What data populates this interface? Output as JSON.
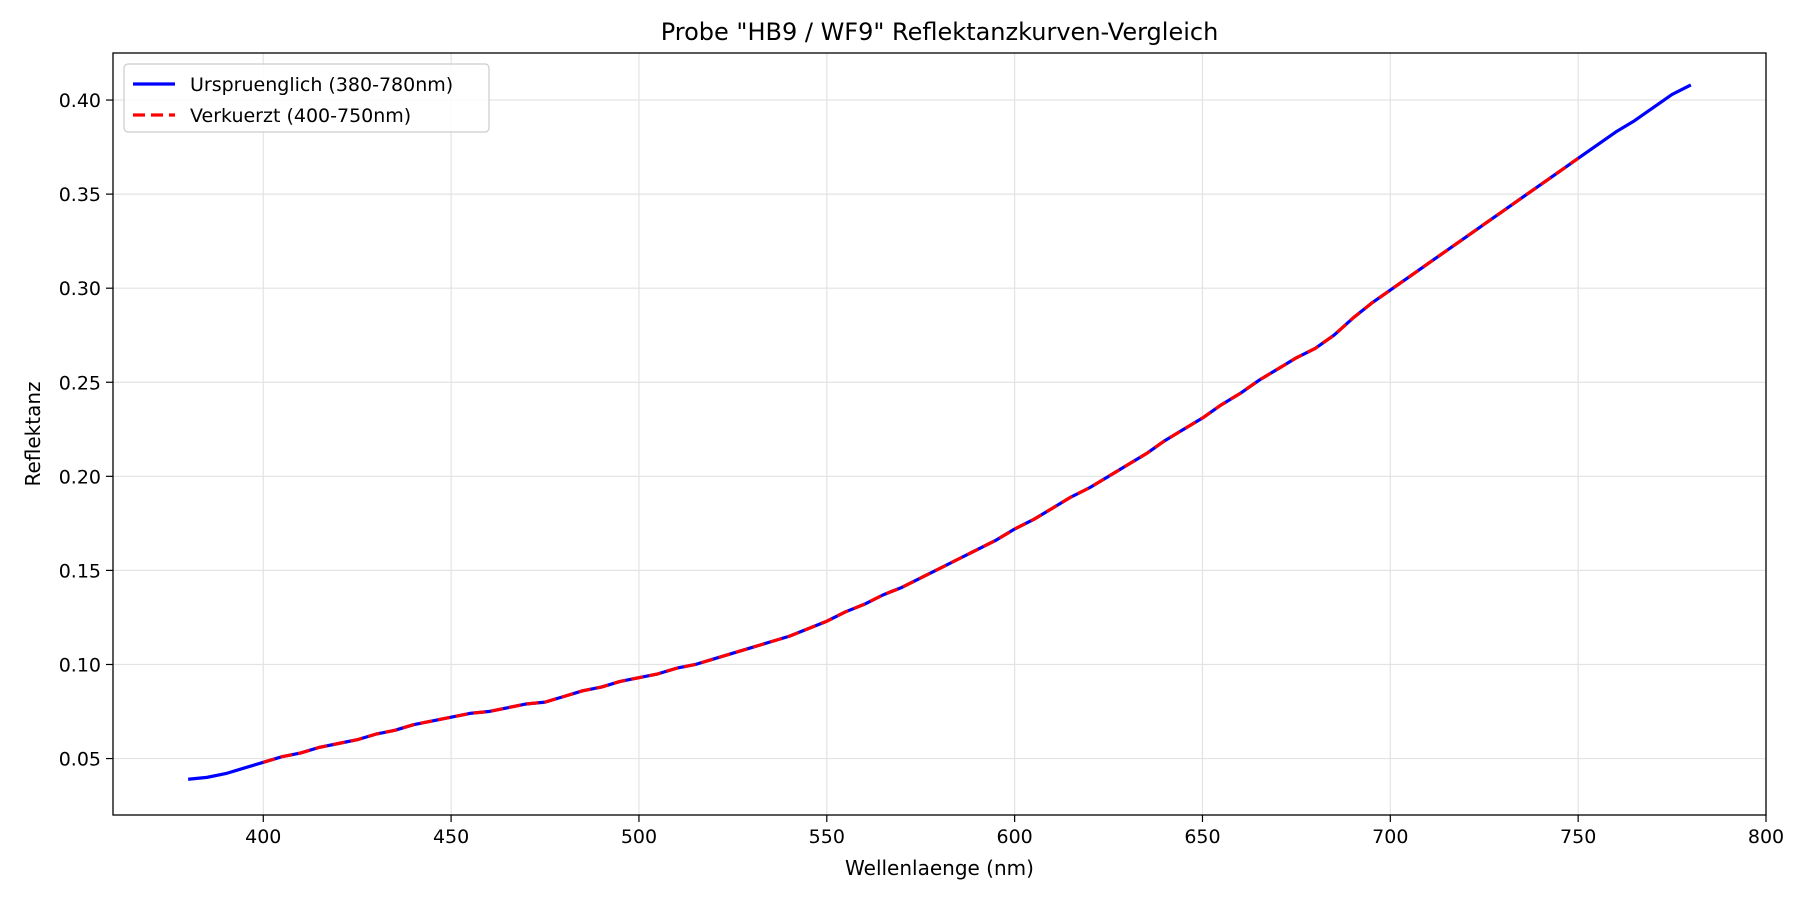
{
  "chart_data": {
    "type": "line",
    "title": "Probe \"HB9 / WF9\" Reflektanzkurven-Vergleich",
    "xlabel": "Wellenlaenge (nm)",
    "ylabel": "Reflektanz",
    "xlim": [
      360,
      800
    ],
    "ylim": [
      0.02,
      0.425
    ],
    "xticks": [
      400,
      450,
      500,
      550,
      600,
      650,
      700,
      750,
      800
    ],
    "yticks": [
      0.05,
      0.1,
      0.15,
      0.2,
      0.25,
      0.3,
      0.35,
      0.4
    ],
    "xtick_labels": [
      "400",
      "450",
      "500",
      "550",
      "600",
      "650",
      "700",
      "750",
      "800"
    ],
    "ytick_labels": [
      "0.05",
      "0.10",
      "0.15",
      "0.20",
      "0.25",
      "0.30",
      "0.35",
      "0.40"
    ],
    "grid": true,
    "legend_position": "top-left",
    "series": [
      {
        "name": "Urspruenglich (380-780nm)",
        "color": "#0000ff",
        "style": "solid",
        "x": [
          380,
          385,
          390,
          395,
          400,
          405,
          410,
          415,
          420,
          425,
          430,
          435,
          440,
          445,
          450,
          455,
          460,
          465,
          470,
          475,
          480,
          485,
          490,
          495,
          500,
          505,
          510,
          515,
          520,
          525,
          530,
          535,
          540,
          545,
          550,
          555,
          560,
          565,
          570,
          575,
          580,
          585,
          590,
          595,
          600,
          605,
          610,
          615,
          620,
          625,
          630,
          635,
          640,
          645,
          650,
          655,
          660,
          665,
          670,
          675,
          680,
          685,
          690,
          695,
          700,
          705,
          710,
          715,
          720,
          725,
          730,
          735,
          740,
          745,
          750,
          755,
          760,
          765,
          770,
          775,
          780
        ],
        "y": [
          0.039,
          0.04,
          0.042,
          0.045,
          0.048,
          0.051,
          0.053,
          0.056,
          0.058,
          0.06,
          0.063,
          0.065,
          0.068,
          0.07,
          0.072,
          0.074,
          0.075,
          0.077,
          0.079,
          0.08,
          0.083,
          0.086,
          0.088,
          0.091,
          0.093,
          0.095,
          0.098,
          0.1,
          0.103,
          0.106,
          0.109,
          0.112,
          0.115,
          0.119,
          0.123,
          0.128,
          0.132,
          0.137,
          0.141,
          0.146,
          0.151,
          0.156,
          0.161,
          0.166,
          0.172,
          0.177,
          0.183,
          0.189,
          0.194,
          0.2,
          0.206,
          0.212,
          0.219,
          0.225,
          0.231,
          0.238,
          0.244,
          0.251,
          0.257,
          0.263,
          0.268,
          0.275,
          0.284,
          0.292,
          0.299,
          0.306,
          0.313,
          0.32,
          0.327,
          0.334,
          0.341,
          0.348,
          0.355,
          0.362,
          0.369,
          0.376,
          0.383,
          0.389,
          0.396,
          0.403,
          0.408
        ]
      },
      {
        "name": "Verkuerzt (400-750nm)",
        "color": "#ff0000",
        "style": "dashed",
        "x": [
          400,
          405,
          410,
          415,
          420,
          425,
          430,
          435,
          440,
          445,
          450,
          455,
          460,
          465,
          470,
          475,
          480,
          485,
          490,
          495,
          500,
          505,
          510,
          515,
          520,
          525,
          530,
          535,
          540,
          545,
          550,
          555,
          560,
          565,
          570,
          575,
          580,
          585,
          590,
          595,
          600,
          605,
          610,
          615,
          620,
          625,
          630,
          635,
          640,
          645,
          650,
          655,
          660,
          665,
          670,
          675,
          680,
          685,
          690,
          695,
          700,
          705,
          710,
          715,
          720,
          725,
          730,
          735,
          740,
          745,
          750
        ],
        "y": [
          0.048,
          0.051,
          0.053,
          0.056,
          0.058,
          0.06,
          0.063,
          0.065,
          0.068,
          0.07,
          0.072,
          0.074,
          0.075,
          0.077,
          0.079,
          0.08,
          0.083,
          0.086,
          0.088,
          0.091,
          0.093,
          0.095,
          0.098,
          0.1,
          0.103,
          0.106,
          0.109,
          0.112,
          0.115,
          0.119,
          0.123,
          0.128,
          0.132,
          0.137,
          0.141,
          0.146,
          0.151,
          0.156,
          0.161,
          0.166,
          0.172,
          0.177,
          0.183,
          0.189,
          0.194,
          0.2,
          0.206,
          0.212,
          0.219,
          0.225,
          0.231,
          0.238,
          0.244,
          0.251,
          0.257,
          0.263,
          0.268,
          0.275,
          0.284,
          0.292,
          0.299,
          0.306,
          0.313,
          0.32,
          0.327,
          0.334,
          0.341,
          0.348,
          0.355,
          0.362,
          0.369
        ]
      }
    ]
  }
}
